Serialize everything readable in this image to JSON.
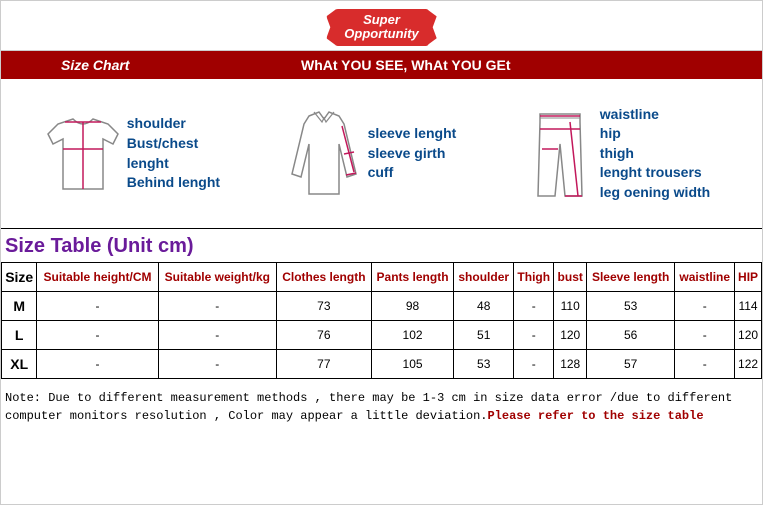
{
  "badge": {
    "line1": "Super",
    "line2": "Opportunity"
  },
  "header": {
    "left": "Size Chart",
    "right": "WhAt YOU SEE, WhAt YOU GEt"
  },
  "diagram": {
    "tshirt": [
      "shoulder",
      "Bust/chest",
      "lenght",
      "Behind lenght"
    ],
    "shirt": [
      "sleeve lenght",
      "sleeve girth",
      "cuff"
    ],
    "pants": [
      "waistline",
      "hip",
      "thigh",
      "lenght trousers",
      "leg oening width"
    ],
    "line_color": "#c2185b",
    "label_color": "#0a4a8a"
  },
  "sizeTable": {
    "title": "Size Table (Unit cm)",
    "columns": [
      "Size",
      "Suitable height/CM",
      "Suitable weight/kg",
      "Clothes length",
      "Pants length",
      "shoulder",
      "Thigh",
      "bust",
      "Sleeve length",
      "waistline",
      "HIP"
    ],
    "rows": [
      [
        "M",
        "-",
        "-",
        "73",
        "98",
        "48",
        "-",
        "110",
        "53",
        "-",
        "114"
      ],
      [
        "L",
        "-",
        "-",
        "76",
        "102",
        "51",
        "-",
        "120",
        "56",
        "-",
        "120"
      ],
      [
        "XL",
        "-",
        "-",
        "77",
        "105",
        "53",
        "-",
        "128",
        "57",
        "-",
        "122"
      ]
    ]
  },
  "note": {
    "text": "Note: Due to different measurement methods , there may be 1-3 cm in size data error /due to different computer monitors resolution , Color may appear a little deviation.",
    "emph": "Please refer to the size table"
  },
  "colors": {
    "header_bg": "#a00000",
    "badge_bg": "#d82c2c",
    "title_color": "#6a1b9a",
    "th_color": "#a00000"
  }
}
